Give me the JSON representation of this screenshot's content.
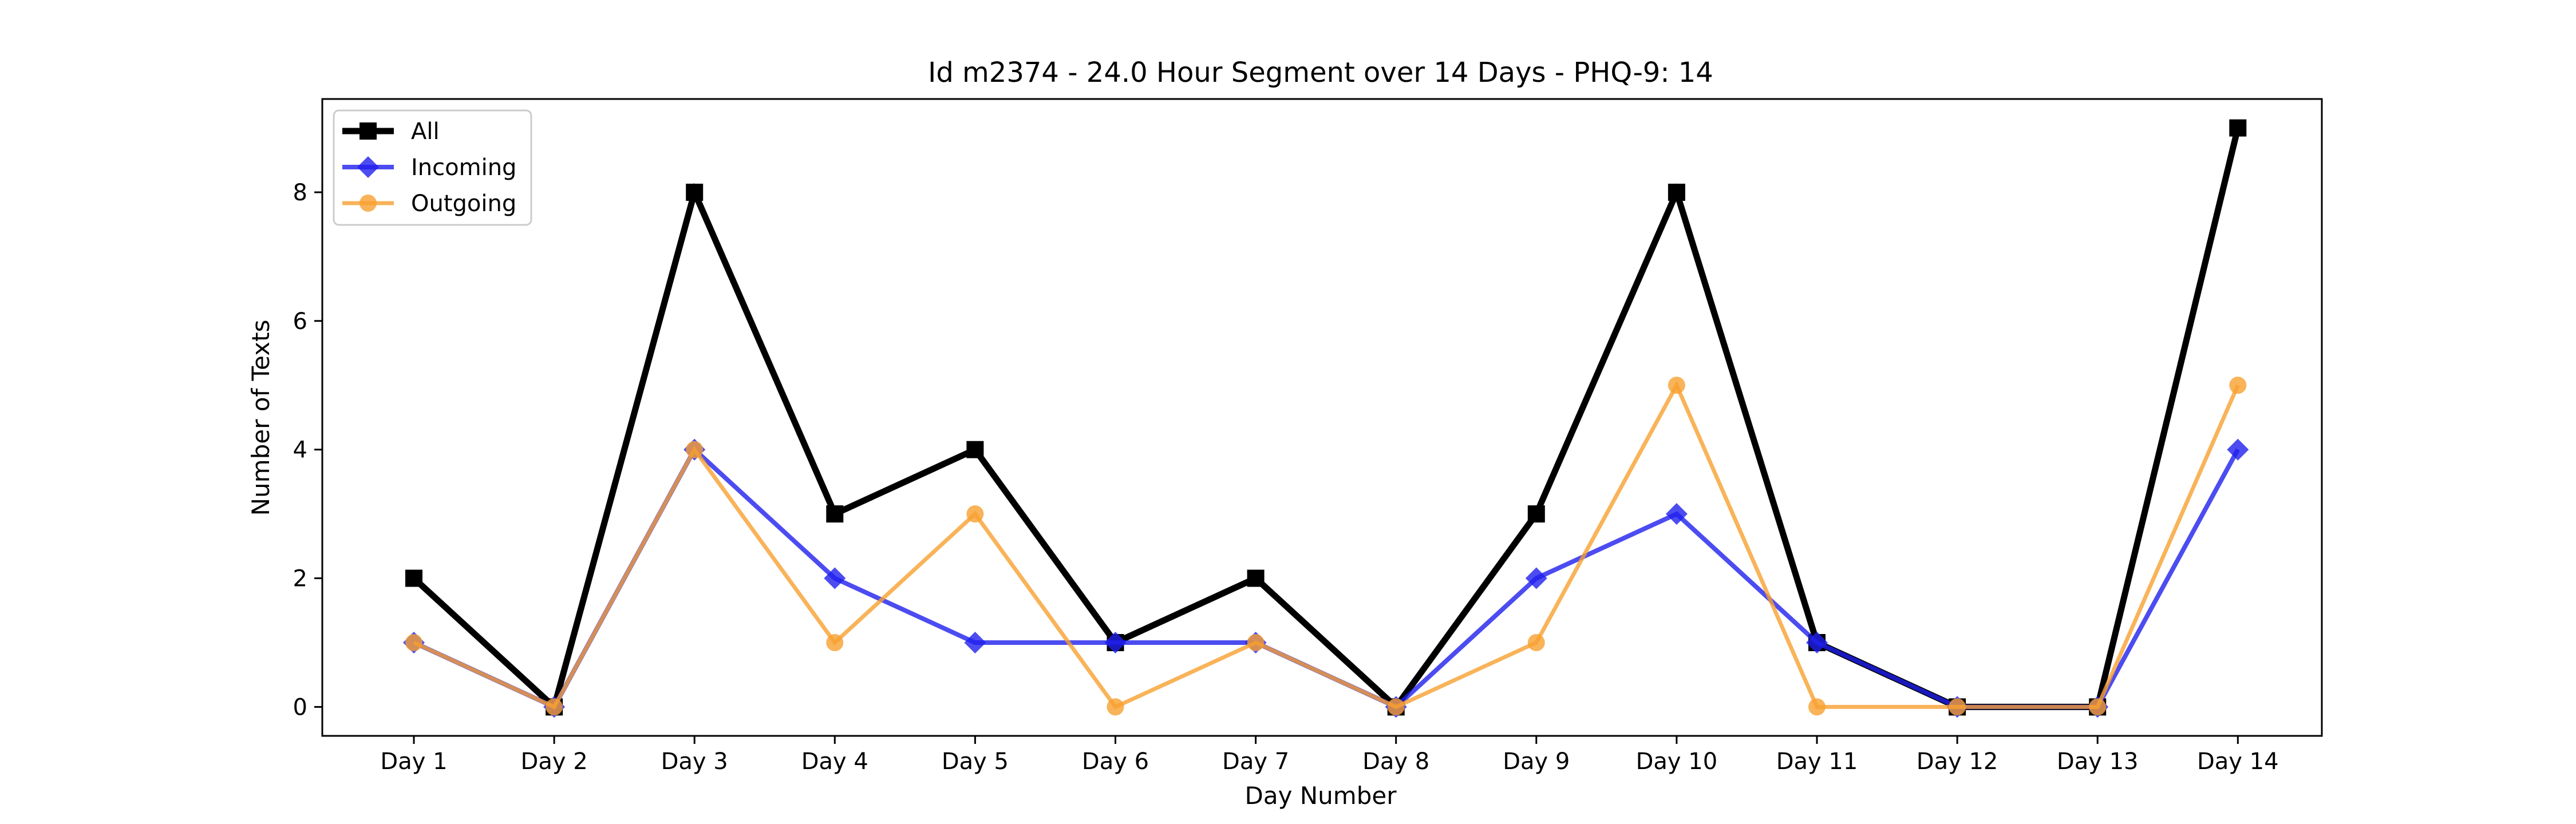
{
  "chart_data": {
    "type": "line",
    "title": "Id m2374 - 24.0 Hour Segment over 14 Days - PHQ-9: 14",
    "xlabel": "Day Number",
    "ylabel": "Number of Texts",
    "categories": [
      "Day 1",
      "Day 2",
      "Day 3",
      "Day 4",
      "Day 5",
      "Day 6",
      "Day 7",
      "Day 8",
      "Day 9",
      "Day 10",
      "Day 11",
      "Day 12",
      "Day 13",
      "Day 14"
    ],
    "ylim": [
      -0.45,
      9.45
    ],
    "yticks": [
      0,
      2,
      4,
      6,
      8
    ],
    "grid": false,
    "legend_position": "top-left",
    "series": [
      {
        "name": "All",
        "color": "#000000",
        "marker": "square",
        "values": [
          2,
          0,
          8,
          3,
          4,
          1,
          2,
          0,
          3,
          8,
          1,
          0,
          0,
          9
        ]
      },
      {
        "name": "Incoming",
        "color": "#1f1fee",
        "marker": "diamond",
        "values": [
          1,
          0,
          4,
          2,
          1,
          1,
          1,
          0,
          2,
          3,
          1,
          0,
          0,
          4
        ]
      },
      {
        "name": "Outgoing",
        "color": "#f8a030",
        "marker": "circle",
        "values": [
          1,
          0,
          4,
          1,
          3,
          0,
          1,
          0,
          1,
          5,
          0,
          0,
          0,
          5
        ]
      }
    ]
  }
}
